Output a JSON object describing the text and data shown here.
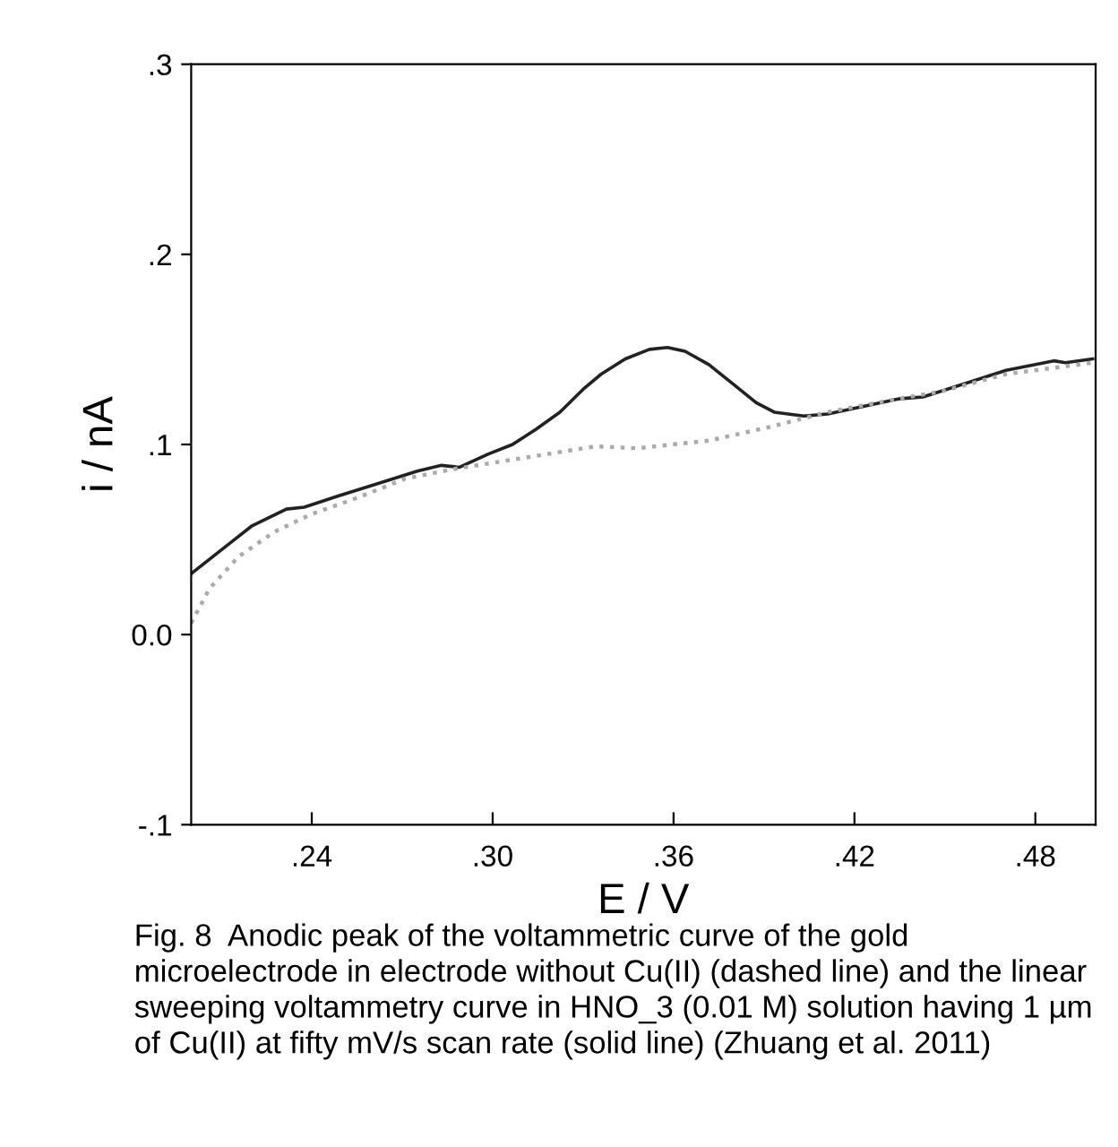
{
  "chart_data": {
    "type": "line",
    "xlabel": "E / V",
    "ylabel": "i / nA",
    "annotations": [
      "Fig. 8  Anodic peak of the voltammetric curve of the gold microelectrode in electrode without Cu(II) (dashed line) and the linear sweeping voltammetry curve in HNO_3 (0.01 M) solution having 1 µm of Cu(II) at fifty mV/s scan rate (solid line) (Zhuang et al. 2011)"
    ],
    "xlim": [
      0.2,
      0.5
    ],
    "ylim": [
      -0.1,
      0.3
    ],
    "xticks": [
      {
        "value": 0.24,
        "label": ".24"
      },
      {
        "value": 0.3,
        "label": ".30"
      },
      {
        "value": 0.36,
        "label": ".36"
      },
      {
        "value": 0.42,
        "label": ".42"
      },
      {
        "value": 0.48,
        "label": ".48"
      }
    ],
    "yticks": [
      {
        "value": -0.1,
        "label": "-.1"
      },
      {
        "value": 0.0,
        "label": "0.0"
      },
      {
        "value": 0.1,
        "label": ".1"
      },
      {
        "value": 0.2,
        "label": ".2"
      },
      {
        "value": 0.3,
        "label": ".3"
      }
    ],
    "grid": false,
    "marker": "none",
    "series": [
      {
        "color": "#222222",
        "line_style": "solid",
        "x": [
          0.2,
          0.212,
          0.22,
          0.2316,
          0.2375,
          0.249,
          0.263,
          0.275,
          0.283,
          0.289,
          0.2986,
          0.3066,
          0.3144,
          0.3223,
          0.33,
          0.336,
          0.344,
          0.352,
          0.358,
          0.3638,
          0.3717,
          0.3796,
          0.3874,
          0.3934,
          0.4032,
          0.4111,
          0.423,
          0.4348,
          0.4427,
          0.4546,
          0.4703,
          0.4861,
          0.49,
          0.499
        ],
        "values": [
          0.032,
          0.047,
          0.057,
          0.066,
          0.067,
          0.073,
          0.08,
          0.086,
          0.089,
          0.088,
          0.095,
          0.1,
          0.108,
          0.117,
          0.129,
          0.137,
          0.145,
          0.15,
          0.151,
          0.149,
          0.142,
          0.132,
          0.122,
          0.117,
          0.115,
          0.116,
          0.12,
          0.124,
          0.125,
          0.131,
          0.139,
          0.144,
          0.143,
          0.145
        ]
      },
      {
        "color": "#aaaaaa",
        "line_style": "dotted",
        "x": [
          0.2,
          0.206,
          0.2157,
          0.2276,
          0.2394,
          0.2552,
          0.271,
          0.2868,
          0.3026,
          0.3184,
          0.334,
          0.348,
          0.3717,
          0.3914,
          0.4111,
          0.431,
          0.449,
          0.4703,
          0.499
        ],
        "values": [
          0.006,
          0.024,
          0.041,
          0.054,
          0.063,
          0.072,
          0.082,
          0.087,
          0.091,
          0.095,
          0.099,
          0.098,
          0.102,
          0.109,
          0.117,
          0.123,
          0.128,
          0.137,
          0.143
        ]
      }
    ]
  }
}
